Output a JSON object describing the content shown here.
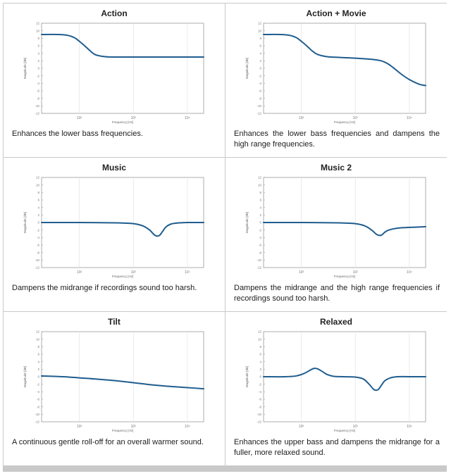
{
  "colors": {
    "curve": "#1f5d8f",
    "grid": "#e3e3e3",
    "axis": "#9a9a9a",
    "border": "#c9c9c9"
  },
  "axes": {
    "xlabel": "Frequency [Hz]",
    "ylabel": "Magnitude [dB]",
    "xticks": [
      "10²",
      "10³",
      "10⁴"
    ],
    "xlim": [
      20,
      20000
    ],
    "xscale": "log",
    "ylim": [
      -12,
      12
    ],
    "yticks": [
      "12",
      "10",
      "8",
      "6",
      "4",
      "2",
      "0",
      "-2",
      "-4",
      "-6",
      "-8",
      "-10",
      "-12"
    ]
  },
  "panels": [
    {
      "title": "Action",
      "caption": "Enhances the lower bass frequencies."
    },
    {
      "title": "Action + Movie",
      "caption": "Enhances the lower bass frequencies and dampens the high range frequencies."
    },
    {
      "title": "Music",
      "caption": "Dampens the midrange if recordings sound too harsh."
    },
    {
      "title": "Music 2",
      "caption": "Dampens the midrange and the high range frequencies if recordings sound too harsh."
    },
    {
      "title": "Tilt",
      "caption": "A continuous gentle roll-off for an overall warmer sound."
    },
    {
      "title": "Relaxed",
      "caption": "Enhances the upper bass and dampens the midrange for a fuller, more relaxed sound."
    }
  ],
  "chart_data": [
    {
      "type": "line",
      "title": "Action",
      "xlabel": "Frequency [Hz]",
      "ylabel": "Magnitude [dB]",
      "xscale": "log",
      "xlim": [
        20,
        20000
      ],
      "ylim": [
        -12,
        12
      ],
      "grid": true,
      "series": [
        {
          "x": [
            20,
            40,
            60,
            80,
            100,
            130,
            160,
            200,
            300,
            500,
            1000,
            2000,
            5000,
            10000,
            20000
          ],
          "y": [
            9,
            9,
            8.8,
            8.2,
            7.2,
            5.8,
            4.6,
            3.6,
            3.1,
            3,
            3,
            3,
            3,
            3,
            3
          ]
        }
      ]
    },
    {
      "type": "line",
      "title": "Action + Movie",
      "xlabel": "Frequency [Hz]",
      "ylabel": "Magnitude [dB]",
      "xscale": "log",
      "xlim": [
        20,
        20000
      ],
      "ylim": [
        -12,
        12
      ],
      "grid": true,
      "series": [
        {
          "x": [
            20,
            40,
            60,
            80,
            100,
            130,
            160,
            200,
            300,
            500,
            1000,
            2000,
            3000,
            4000,
            5000,
            7000,
            10000,
            15000,
            20000
          ],
          "y": [
            9,
            9,
            8.8,
            8.2,
            7.2,
            5.8,
            4.6,
            3.7,
            3.1,
            2.9,
            2.7,
            2.4,
            2,
            1.2,
            0.2,
            -1.5,
            -3,
            -4.2,
            -4.6
          ]
        }
      ]
    },
    {
      "type": "line",
      "title": "Music",
      "xlabel": "Frequency [Hz]",
      "ylabel": "Magnitude [dB]",
      "xscale": "log",
      "xlim": [
        20,
        20000
      ],
      "ylim": [
        -12,
        12
      ],
      "grid": true,
      "series": [
        {
          "x": [
            20,
            100,
            500,
            1000,
            1500,
            2000,
            2500,
            3000,
            3500,
            4000,
            5000,
            7000,
            10000,
            20000
          ],
          "y": [
            0,
            0,
            -0.1,
            -0.3,
            -0.9,
            -2,
            -3.4,
            -3.5,
            -2.3,
            -1.2,
            -0.4,
            -0.1,
            0,
            0
          ]
        }
      ]
    },
    {
      "type": "line",
      "title": "Music 2",
      "xlabel": "Frequency [Hz]",
      "ylabel": "Magnitude [dB]",
      "xscale": "log",
      "xlim": [
        20,
        20000
      ],
      "ylim": [
        -12,
        12
      ],
      "grid": true,
      "series": [
        {
          "x": [
            20,
            100,
            500,
            1000,
            1500,
            2000,
            2500,
            3000,
            3500,
            4000,
            5000,
            7000,
            10000,
            15000,
            20000
          ],
          "y": [
            0,
            0,
            -0.1,
            -0.3,
            -0.9,
            -2,
            -3.2,
            -3.4,
            -2.6,
            -2.1,
            -1.7,
            -1.4,
            -1.3,
            -1.2,
            -1.1
          ]
        }
      ]
    },
    {
      "type": "line",
      "title": "Tilt",
      "xlabel": "Frequency [Hz]",
      "ylabel": "Magnitude [dB]",
      "xscale": "log",
      "xlim": [
        20,
        20000
      ],
      "ylim": [
        -12,
        12
      ],
      "grid": true,
      "series": [
        {
          "x": [
            20,
            50,
            100,
            200,
            500,
            1000,
            2000,
            5000,
            10000,
            20000
          ],
          "y": [
            0.2,
            0,
            -0.3,
            -0.6,
            -1.1,
            -1.6,
            -2.1,
            -2.6,
            -2.9,
            -3.2
          ]
        }
      ]
    },
    {
      "type": "line",
      "title": "Relaxed",
      "xlabel": "Frequency [Hz]",
      "ylabel": "Magnitude [dB]",
      "xscale": "log",
      "xlim": [
        20,
        20000
      ],
      "ylim": [
        -12,
        12
      ],
      "grid": true,
      "series": [
        {
          "x": [
            20,
            50,
            80,
            110,
            140,
            170,
            200,
            250,
            300,
            400,
            600,
            1000,
            1400,
            1800,
            2200,
            2600,
            3000,
            3500,
            4500,
            6000,
            10000,
            20000
          ],
          "y": [
            0,
            0,
            0.2,
            0.8,
            1.6,
            2.2,
            2.1,
            1.3,
            0.6,
            0.1,
            0,
            -0.1,
            -0.6,
            -2,
            -3.4,
            -3.5,
            -2.4,
            -1.1,
            -0.3,
            0,
            0,
            0
          ]
        }
      ]
    }
  ]
}
